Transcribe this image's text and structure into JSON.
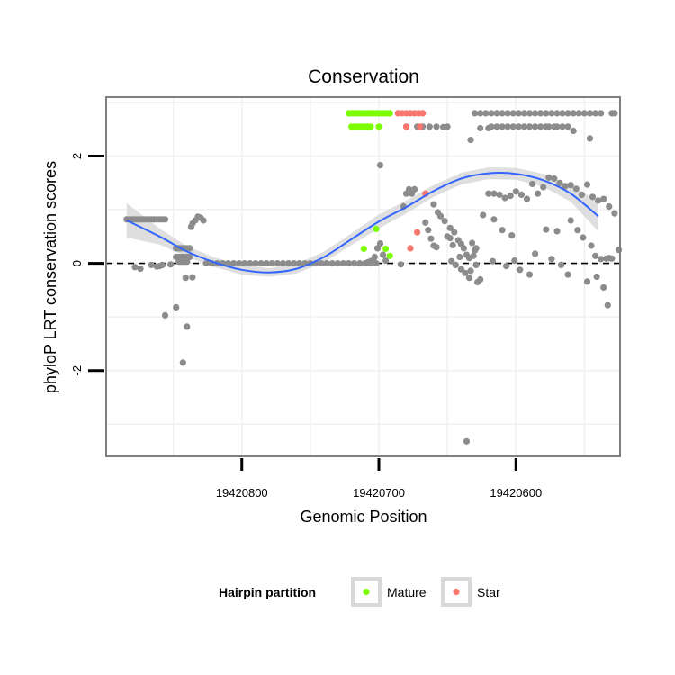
{
  "chart_data": {
    "type": "scatter",
    "title": "Conservation",
    "xlabel": "Genomic Position",
    "ylabel": "phyloP LRT conservation scores",
    "x_reversed": true,
    "xlim": [
      19420899,
      19420524
    ],
    "ylim": [
      -3.6,
      3.1
    ],
    "x_ticks": [
      {
        "value": 19420800,
        "label": "19420800"
      },
      {
        "value": 19420700,
        "label": "19420700"
      },
      {
        "value": 19420600,
        "label": "19420600"
      }
    ],
    "y_ticks": [
      {
        "value": -2,
        "label": "-2"
      },
      {
        "value": 0,
        "label": "0"
      },
      {
        "value": 2,
        "label": "2"
      }
    ],
    "reference_line": {
      "y": 0,
      "style": "dashed"
    },
    "colors": {
      "Background": "#8c8c8c",
      "Mature": "#7cfc00",
      "Star": "#f8766d",
      "smooth": "#3366ff",
      "ribbon": "#d9d9d9",
      "panel_border": "#7f7f7f",
      "grid": "#f0f0f0"
    },
    "legend": {
      "title": "Hairpin partition",
      "position": "bottom",
      "entries": [
        {
          "label": "Mature",
          "group": "Mature"
        },
        {
          "label": "Star",
          "group": "Star"
        }
      ]
    },
    "smooth_line": {
      "x": [
        19420884,
        19420860,
        19420840,
        19420820,
        19420800,
        19420780,
        19420760,
        19420740,
        19420720,
        19420700,
        19420680,
        19420660,
        19420640,
        19420620,
        19420600,
        19420580,
        19420560,
        19420540
      ],
      "y": [
        0.8,
        0.5,
        0.22,
        0.02,
        -0.12,
        -0.17,
        -0.1,
        0.12,
        0.45,
        0.78,
        1.05,
        1.35,
        1.58,
        1.68,
        1.67,
        1.55,
        1.3,
        0.88
      ],
      "se": [
        0.32,
        0.15,
        0.1,
        0.09,
        0.09,
        0.08,
        0.09,
        0.1,
        0.11,
        0.13,
        0.12,
        0.11,
        0.11,
        0.11,
        0.11,
        0.12,
        0.15,
        0.28
      ]
    },
    "series": [
      {
        "name": "Background",
        "x": [
          19420884,
          19420882,
          19420880,
          19420878,
          19420876,
          19420874,
          19420872,
          19420870,
          19420868,
          19420866,
          19420864,
          19420862,
          19420860,
          19420858,
          19420856,
          19420878,
          19420874,
          19420866,
          19420862,
          19420860,
          19420858,
          19420848,
          19420846,
          19420844,
          19420842,
          19420840,
          19420838,
          19420848,
          19420846,
          19420844,
          19420842,
          19420840,
          19420838,
          19420846,
          19420844,
          19420842,
          19420840,
          19420837,
          19420836,
          19420834,
          19420832,
          19420830,
          19420828,
          19420856,
          19420843,
          19420848,
          19420840,
          19420841,
          19420852,
          19420836,
          19420826,
          19420822,
          19420818,
          19420814,
          19420810,
          19420806,
          19420802,
          19420798,
          19420794,
          19420790,
          19420786,
          19420782,
          19420778,
          19420774,
          19420770,
          19420766,
          19420762,
          19420758,
          19420754,
          19420750,
          19420746,
          19420742,
          19420738,
          19420734,
          19420730,
          19420726,
          19420722,
          19420718,
          19420714,
          19420710,
          19420706,
          19420702,
          19420708,
          19420706,
          19420704,
          19420703,
          19420701,
          19420699,
          19420699,
          19420697,
          19420695,
          19420684,
          19420682,
          19420680,
          19420678,
          19420676,
          19420674,
          19420666,
          19420664,
          19420662,
          19420660,
          19420658,
          19420680,
          19420672,
          19420668,
          19420663,
          19420658,
          19420653,
          19420650,
          19420660,
          19420657,
          19420655,
          19420652,
          19420648,
          19420645,
          19420642,
          19420640,
          19420638,
          19420636,
          19420634,
          19420647,
          19420644,
          19420640,
          19420637,
          19420634,
          19420646,
          19420648,
          19420650,
          19420641,
          19420633,
          19420628,
          19420626,
          19420633,
          19420636,
          19420632,
          19420630,
          19420630,
          19420626,
          19420622,
          19420618,
          19420614,
          19420610,
          19420606,
          19420602,
          19420598,
          19420594,
          19420590,
          19420586,
          19420582,
          19420578,
          19420574,
          19420570,
          19420566,
          19420562,
          19420558,
          19420554,
          19420550,
          19420546,
          19420542,
          19420538,
          19420530,
          19420528,
          19420626,
          19420620,
          19420618,
          19420614,
          19420610,
          19420606,
          19420602,
          19420598,
          19420594,
          19420590,
          19420586,
          19420582,
          19420578,
          19420576,
          19420572,
          19420570,
          19420566,
          19420562,
          19420558,
          19420546,
          19420620,
          19420616,
          19420612,
          19420608,
          19420604,
          19420600,
          19420596,
          19420592,
          19420588,
          19420584,
          19420580,
          19420576,
          19420572,
          19420568,
          19420564,
          19420560,
          19420556,
          19420552,
          19420548,
          19420544,
          19420540,
          19420536,
          19420532,
          19420528,
          19420525,
          19420624,
          19420616,
          19420610,
          19420603,
          19420586,
          19420578,
          19420570,
          19420560,
          19420555,
          19420551,
          19420545,
          19420542,
          19420538,
          19420534,
          19420532,
          19420530,
          19420629,
          19420617,
          19420607,
          19420601,
          19420597,
          19420590,
          19420574,
          19420567,
          19420562,
          19420548,
          19420541,
          19420536,
          19420533,
          19420629,
          19420631
        ],
        "y": [
          0.82,
          0.82,
          0.82,
          0.82,
          0.82,
          0.82,
          0.82,
          0.82,
          0.82,
          0.82,
          0.82,
          0.82,
          0.82,
          0.82,
          0.82,
          -0.07,
          -0.1,
          -0.03,
          -0.06,
          -0.05,
          -0.03,
          0.12,
          0.12,
          0.12,
          0.12,
          0.12,
          0.12,
          0.28,
          0.28,
          0.28,
          0.28,
          0.28,
          0.28,
          0.03,
          0.03,
          0.03,
          0.03,
          0.68,
          0.74,
          0.8,
          0.87,
          0.85,
          0.8,
          -0.97,
          -1.85,
          -0.82,
          -1.18,
          -0.27,
          -0.02,
          -0.26,
          0,
          0,
          0,
          0,
          0,
          0,
          0,
          0,
          0,
          0,
          0,
          0,
          0,
          0,
          0,
          0,
          0,
          0,
          0,
          0,
          0,
          0,
          0,
          0,
          0,
          0,
          0,
          0,
          0,
          0,
          0,
          0,
          0.02,
          0.04,
          0.06,
          0.12,
          0.28,
          1.83,
          0.37,
          0.16,
          0.05,
          -0.02,
          1.06,
          1.3,
          1.38,
          1.3,
          1.38,
          0.76,
          0.62,
          0.46,
          0.33,
          0.3,
          2.55,
          2.55,
          2.55,
          2.55,
          2.55,
          2.54,
          2.55,
          1.1,
          0.95,
          0.88,
          0.79,
          0.66,
          0.58,
          0.43,
          0.36,
          0.28,
          0.16,
          0.1,
          0.04,
          -0.03,
          -0.11,
          -0.18,
          -0.27,
          0.34,
          0.47,
          0.5,
          0.12,
          -0.14,
          -0.35,
          -0.3,
          2.3,
          -3.32,
          0.38,
          0.24,
          2.8,
          2.8,
          2.8,
          2.8,
          2.8,
          2.8,
          2.8,
          2.8,
          2.8,
          2.8,
          2.8,
          2.8,
          2.8,
          2.8,
          2.8,
          2.8,
          2.8,
          2.8,
          2.8,
          2.8,
          2.8,
          2.8,
          2.8,
          2.8,
          2.8,
          2.8,
          2.52,
          2.52,
          2.55,
          2.55,
          2.55,
          2.55,
          2.55,
          2.55,
          2.55,
          2.55,
          2.55,
          2.55,
          2.55,
          2.55,
          2.55,
          2.55,
          2.55,
          2.55,
          2.47,
          2.33,
          1.3,
          1.3,
          1.28,
          1.22,
          1.26,
          1.34,
          1.28,
          1.2,
          1.48,
          1.3,
          1.42,
          1.6,
          1.58,
          1.5,
          1.44,
          1.46,
          1.39,
          1.28,
          1.47,
          1.24,
          1.17,
          1.2,
          1.06,
          0.93,
          0.25,
          0.9,
          0.82,
          0.62,
          0.52,
          0.18,
          0.63,
          0.6,
          0.8,
          0.62,
          0.48,
          0.33,
          0.14,
          0.08,
          0.09,
          0.1,
          0.09,
          -0.03,
          0.04,
          -0.05,
          0.05,
          -0.12,
          -0.21,
          0.08,
          -0.03,
          -0.21,
          -0.34,
          -0.25,
          -0.45,
          -0.78,
          0.28,
          0.14
        ]
      },
      {
        "name": "Mature",
        "x": [
          19420722,
          19420720,
          19420718,
          19420716,
          19420714,
          19420712,
          19420710,
          19420708,
          19420706,
          19420704,
          19420702,
          19420700,
          19420698,
          19420696,
          19420694,
          19420692,
          19420720,
          19420718,
          19420716,
          19420714,
          19420712,
          19420710,
          19420708,
          19420706,
          19420700,
          19420711,
          19420702,
          19420695,
          19420692
        ],
        "y": [
          2.8,
          2.8,
          2.8,
          2.8,
          2.8,
          2.8,
          2.8,
          2.8,
          2.8,
          2.8,
          2.8,
          2.8,
          2.8,
          2.8,
          2.8,
          2.8,
          2.55,
          2.55,
          2.55,
          2.55,
          2.55,
          2.55,
          2.55,
          2.55,
          2.55,
          0.27,
          0.64,
          0.27,
          0.14
        ]
      },
      {
        "name": "Star",
        "x": [
          19420686,
          19420683,
          19420680,
          19420677,
          19420674,
          19420671,
          19420668,
          19420680,
          19420670,
          19420677,
          19420666,
          19420672
        ],
        "y": [
          2.8,
          2.8,
          2.8,
          2.8,
          2.8,
          2.8,
          2.8,
          2.55,
          2.55,
          0.28,
          1.3,
          0.58
        ]
      }
    ]
  }
}
